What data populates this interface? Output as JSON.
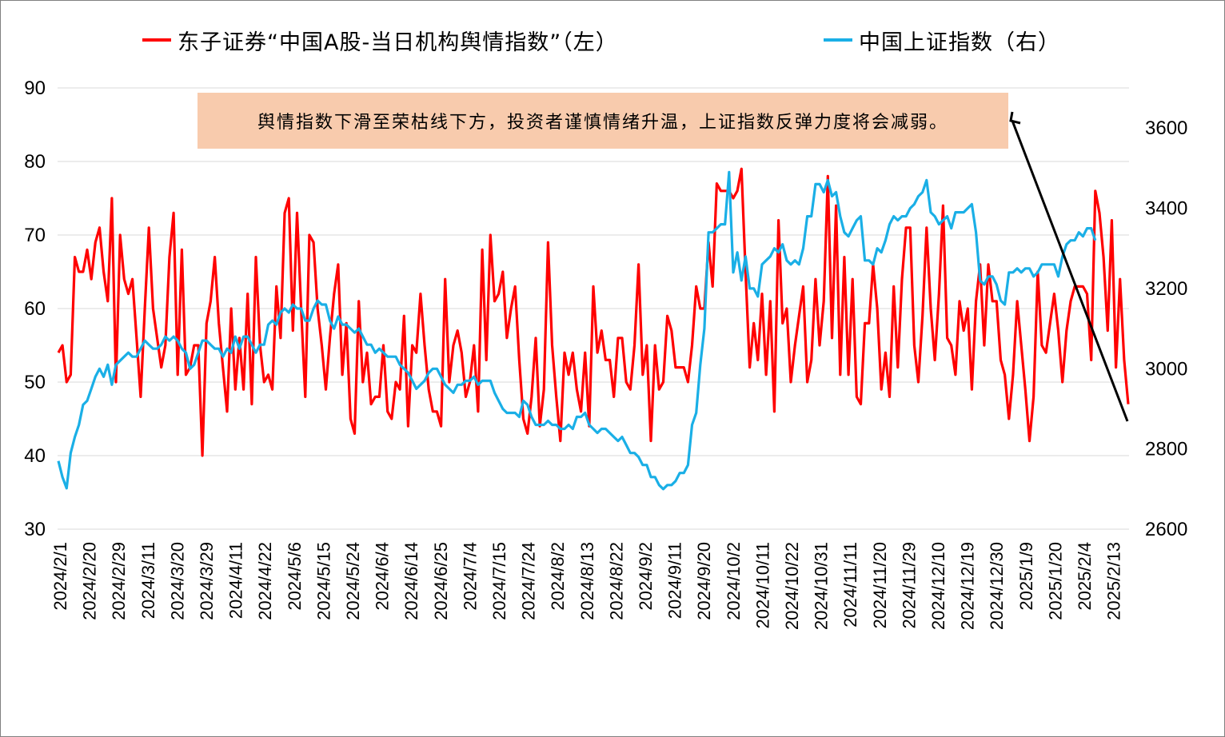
{
  "chart_data": {
    "type": "line",
    "title": "",
    "annotation": "舆情指数下滑至荣枯线下方，投资者谨慎情绪升温，上证指数反弹力度将会减弱。",
    "xlabel": "",
    "ylabel_left": "",
    "ylabel_right": "",
    "grid": true,
    "legend_position": "top",
    "ylim_left": [
      30,
      90
    ],
    "ylim_right": [
      2600,
      3700
    ],
    "yticks_left": [
      "30",
      "40",
      "50",
      "60",
      "70",
      "80",
      "90"
    ],
    "yticks_right": [
      "2600",
      "2800",
      "3000",
      "3200",
      "3400",
      "3600"
    ],
    "x_tick_labels": [
      "2024/2/1",
      "2024/2/20",
      "2024/2/29",
      "2024/3/11",
      "2024/3/20",
      "2024/3/29",
      "2024/4/11",
      "2024/4/22",
      "2024/5/6",
      "2024/5/15",
      "2024/5/24",
      "2024/6/4",
      "2024/6/14",
      "2024/6/25",
      "2024/7/4",
      "2024/7/15",
      "2024/7/24",
      "2024/8/2",
      "2024/8/13",
      "2024/8/22",
      "2024/9/2",
      "2024/9/11",
      "2024/9/20",
      "2024/10/2",
      "2024/10/11",
      "2024/10/22",
      "2024/10/31",
      "2024/11/11",
      "2024/11/20",
      "2024/11/29",
      "2024/12/10",
      "2024/12/19",
      "2024/12/30",
      "2025/1/9",
      "2025/1/20",
      "2025/2/4",
      "2025/2/13"
    ],
    "series": [
      {
        "name": "东子证券“中国A股-当日机构舆情指数”（左）",
        "axis": "left",
        "color": "#ff0000",
        "values": [
          54,
          55,
          50,
          51,
          67,
          65,
          65,
          68,
          64,
          69,
          71,
          65,
          61,
          75,
          50,
          70,
          64,
          62,
          64,
          56,
          48,
          60,
          71,
          60,
          56,
          52,
          55,
          67,
          73,
          51,
          68,
          51,
          52,
          55,
          55,
          40,
          58,
          61,
          67,
          58,
          52,
          46,
          60,
          49,
          56,
          49,
          62,
          47,
          67,
          55,
          50,
          51,
          49,
          63,
          56,
          73,
          75,
          57,
          73,
          60,
          48,
          70,
          69,
          60,
          55,
          49,
          56,
          62,
          66,
          51,
          58,
          45,
          43,
          61,
          50,
          54,
          47,
          48,
          48,
          55,
          46,
          45,
          50,
          49,
          59,
          44,
          55,
          54,
          62,
          55,
          49,
          46,
          46,
          44,
          64,
          50,
          55,
          57,
          54,
          48,
          50,
          55,
          46,
          68,
          53,
          70,
          61,
          62,
          65,
          56,
          60,
          63,
          53,
          45,
          43,
          48,
          56,
          44,
          49,
          69,
          55,
          48,
          42,
          54,
          51,
          54,
          49,
          46,
          54,
          44,
          63,
          54,
          57,
          53,
          53,
          48,
          56,
          56,
          50,
          49,
          55,
          66,
          51,
          55,
          42,
          55,
          49,
          50,
          59,
          57,
          52,
          52,
          52,
          50,
          55,
          63,
          60,
          60,
          69,
          63,
          77,
          76,
          76,
          76,
          75,
          76,
          79,
          65,
          52,
          58,
          53,
          62,
          51,
          61,
          46,
          72,
          58,
          60,
          50,
          55,
          59,
          63,
          50,
          53,
          64,
          55,
          61,
          78,
          56,
          74,
          51,
          67,
          51,
          64,
          48,
          47,
          58,
          58,
          66,
          60,
          49,
          54,
          48,
          63,
          52,
          64,
          71,
          71,
          55,
          50,
          59,
          71,
          60,
          53,
          62,
          74,
          56,
          55,
          51,
          61,
          57,
          60,
          49,
          61,
          66,
          55,
          66,
          61,
          61,
          53,
          51,
          45,
          51,
          61,
          55,
          49,
          42,
          48,
          65,
          55,
          54,
          58,
          62,
          57,
          50,
          57,
          61,
          63,
          63,
          63,
          62,
          53,
          76,
          73,
          67,
          57,
          72,
          52,
          64,
          53,
          47
        ]
      },
      {
        "name": "中国上证指数（右）",
        "axis": "right",
        "color": "#1aafe6",
        "values": [
          2770,
          2730,
          2702,
          2790,
          2830,
          2860,
          2910,
          2920,
          2950,
          2980,
          3000,
          2980,
          3010,
          2960,
          3010,
          3020,
          3030,
          3040,
          3030,
          3030,
          3050,
          3070,
          3060,
          3050,
          3050,
          3060,
          3080,
          3070,
          3080,
          3070,
          3050,
          3040,
          3000,
          3010,
          3040,
          3070,
          3070,
          3060,
          3050,
          3050,
          3030,
          3050,
          3040,
          3080,
          3050,
          3080,
          3080,
          3060,
          3040,
          3060,
          3060,
          3110,
          3120,
          3110,
          3140,
          3150,
          3140,
          3160,
          3150,
          3150,
          3120,
          3120,
          3150,
          3170,
          3160,
          3160,
          3120,
          3100,
          3130,
          3110,
          3110,
          3100,
          3090,
          3100,
          3080,
          3060,
          3060,
          3040,
          3050,
          3040,
          3030,
          3030,
          3030,
          3010,
          3000,
          2990,
          2970,
          2950,
          2960,
          2970,
          2990,
          3000,
          3000,
          2980,
          2960,
          2950,
          2940,
          2960,
          2960,
          2970,
          2970,
          2980,
          2960,
          2970,
          2970,
          2970,
          2940,
          2920,
          2900,
          2890,
          2890,
          2890,
          2880,
          2920,
          2910,
          2880,
          2860,
          2860,
          2860,
          2870,
          2860,
          2860,
          2850,
          2850,
          2860,
          2850,
          2880,
          2880,
          2890,
          2860,
          2850,
          2840,
          2850,
          2850,
          2840,
          2830,
          2820,
          2830,
          2810,
          2790,
          2790,
          2780,
          2760,
          2760,
          2730,
          2730,
          2710,
          2700,
          2710,
          2710,
          2720,
          2740,
          2740,
          2760,
          2860,
          2890,
          3010,
          3100,
          3340,
          3340,
          3350,
          3360,
          3360,
          3490,
          3240,
          3290,
          3220,
          3280,
          3200,
          3200,
          3180,
          3260,
          3270,
          3280,
          3300,
          3290,
          3310,
          3270,
          3260,
          3270,
          3260,
          3300,
          3380,
          3380,
          3460,
          3460,
          3440,
          3470,
          3430,
          3440,
          3380,
          3340,
          3330,
          3350,
          3370,
          3380,
          3270,
          3270,
          3260,
          3300,
          3290,
          3320,
          3360,
          3380,
          3370,
          3380,
          3380,
          3400,
          3410,
          3430,
          3440,
          3470,
          3390,
          3380,
          3360,
          3370,
          3380,
          3350,
          3390,
          3390,
          3390,
          3400,
          3410,
          3340,
          3220,
          3210,
          3230,
          3230,
          3210,
          3170,
          3160,
          3240,
          3240,
          3250,
          3240,
          3250,
          3250,
          3230,
          3240,
          3260,
          3260,
          3260,
          3260,
          3230,
          3280,
          3310,
          3320,
          3320,
          3340,
          3330,
          3350,
          3350,
          3320
        ]
      }
    ]
  }
}
